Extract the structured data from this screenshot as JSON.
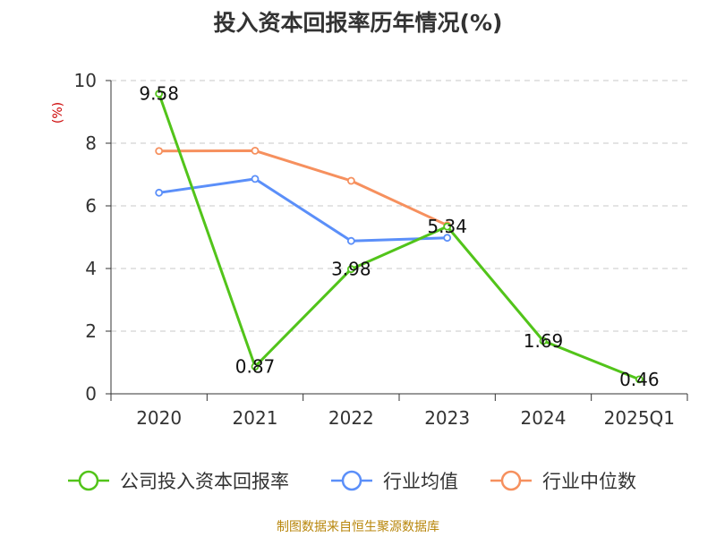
{
  "chart_data": {
    "type": "line",
    "title": "投入资本回报率历年情况(%)",
    "ylabel": "(%)",
    "xlabel": "",
    "categories": [
      "2020",
      "2021",
      "2022",
      "2023",
      "2024",
      "2025Q1"
    ],
    "ylim": [
      0,
      10
    ],
    "yticks": [
      0,
      2,
      4,
      6,
      8,
      10
    ],
    "grid": true,
    "legend_position": "bottom",
    "series": [
      {
        "name": "公司投入资本回报率",
        "color": "#52c41a",
        "values": [
          9.58,
          0.87,
          3.98,
          5.34,
          1.69,
          0.46
        ],
        "data_labels": [
          "9.58",
          "0.87",
          "3.98",
          "5.34",
          "1.69",
          "0.46"
        ]
      },
      {
        "name": "行业均值",
        "color": "#5b8ff9",
        "values": [
          6.42,
          6.86,
          4.88,
          4.98,
          null,
          null
        ]
      },
      {
        "name": "行业中位数",
        "color": "#f6905e",
        "values": [
          7.75,
          7.76,
          6.8,
          5.38,
          null,
          null
        ]
      }
    ]
  },
  "footer": {
    "source": "制图数据来自恒生聚源数据库"
  }
}
